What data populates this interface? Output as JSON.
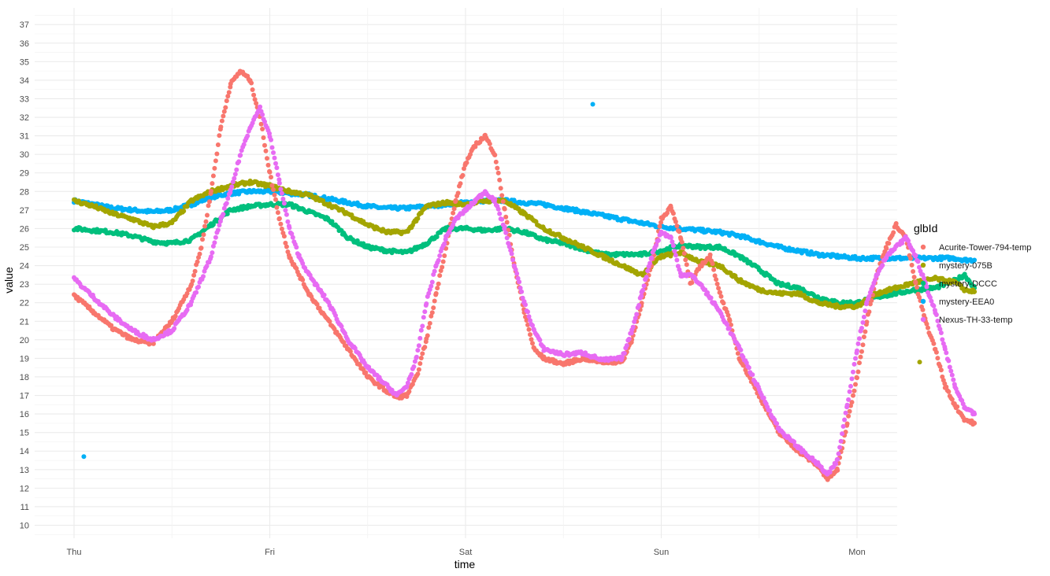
{
  "chart_data": {
    "type": "scatter",
    "title": "",
    "xlabel": "time",
    "ylabel": "value",
    "x_ticks": [
      "Thu",
      "Fri",
      "Sat",
      "Sun",
      "Mon"
    ],
    "x_range_days": [
      -0.2,
      4.2
    ],
    "ylim": [
      9.3,
      37.9
    ],
    "y_ticks": [
      10,
      11,
      12,
      13,
      14,
      15,
      16,
      17,
      18,
      19,
      20,
      21,
      22,
      23,
      24,
      25,
      26,
      27,
      28,
      29,
      30,
      31,
      32,
      33,
      34,
      35,
      36,
      37
    ],
    "grid": true,
    "legend": {
      "title": "glbId",
      "position": "right"
    },
    "series": [
      {
        "name": "Acurite-Tower-794-temp",
        "color": "#F8766D",
        "points": [
          [
            0.0,
            22.4
          ],
          [
            0.1,
            21.5
          ],
          [
            0.2,
            20.6
          ],
          [
            0.3,
            20.0
          ],
          [
            0.4,
            19.8
          ],
          [
            0.5,
            21.0
          ],
          [
            0.6,
            23.0
          ],
          [
            0.65,
            25.0
          ],
          [
            0.7,
            28.0
          ],
          [
            0.75,
            31.5
          ],
          [
            0.8,
            33.8
          ],
          [
            0.85,
            34.5
          ],
          [
            0.9,
            34.0
          ],
          [
            0.95,
            32.0
          ],
          [
            1.0,
            29.0
          ],
          [
            1.05,
            26.5
          ],
          [
            1.1,
            24.5
          ],
          [
            1.15,
            23.5
          ],
          [
            1.2,
            22.5
          ],
          [
            1.3,
            21.0
          ],
          [
            1.4,
            19.5
          ],
          [
            1.5,
            18.0
          ],
          [
            1.6,
            17.2
          ],
          [
            1.65,
            16.9
          ],
          [
            1.7,
            17.0
          ],
          [
            1.75,
            18.0
          ],
          [
            1.8,
            20.0
          ],
          [
            1.85,
            22.5
          ],
          [
            1.9,
            25.0
          ],
          [
            1.95,
            27.5
          ],
          [
            2.0,
            29.5
          ],
          [
            2.05,
            30.5
          ],
          [
            2.1,
            31.0
          ],
          [
            2.15,
            30.0
          ],
          [
            2.2,
            27.0
          ],
          [
            2.25,
            24.0
          ],
          [
            2.3,
            21.5
          ],
          [
            2.35,
            19.5
          ],
          [
            2.4,
            19.0
          ],
          [
            2.5,
            18.7
          ],
          [
            2.6,
            19.0
          ],
          [
            2.7,
            18.8
          ],
          [
            2.8,
            18.8
          ],
          [
            2.85,
            20.0
          ],
          [
            2.9,
            22.0
          ],
          [
            2.95,
            24.0
          ],
          [
            3.0,
            26.5
          ],
          [
            3.05,
            27.2
          ],
          [
            3.1,
            25.5
          ],
          [
            3.15,
            23.0
          ],
          [
            3.2,
            24.0
          ],
          [
            3.25,
            24.5
          ],
          [
            3.3,
            22.5
          ],
          [
            3.35,
            21.0
          ],
          [
            3.4,
            19.0
          ],
          [
            3.5,
            17.0
          ],
          [
            3.6,
            15.0
          ],
          [
            3.7,
            14.0
          ],
          [
            3.8,
            13.2
          ],
          [
            3.85,
            12.5
          ],
          [
            3.9,
            13.0
          ],
          [
            3.95,
            15.5
          ],
          [
            4.0,
            18.0
          ],
          [
            4.05,
            21.0
          ],
          [
            4.1,
            23.5
          ],
          [
            4.15,
            25.0
          ],
          [
            4.2,
            26.2
          ],
          [
            4.25,
            25.5
          ],
          [
            4.3,
            23.0
          ],
          [
            4.35,
            21.0
          ],
          [
            4.4,
            19.5
          ],
          [
            4.45,
            17.5
          ],
          [
            4.5,
            16.5
          ],
          [
            4.55,
            15.7
          ],
          [
            4.6,
            15.5
          ]
        ]
      },
      {
        "name": "mystery-075B",
        "color": "#A3A500",
        "points": [
          [
            0.0,
            27.5
          ],
          [
            0.1,
            27.2
          ],
          [
            0.2,
            26.8
          ],
          [
            0.3,
            26.5
          ],
          [
            0.4,
            26.1
          ],
          [
            0.5,
            26.3
          ],
          [
            0.6,
            27.5
          ],
          [
            0.7,
            28.0
          ],
          [
            0.8,
            28.3
          ],
          [
            0.9,
            28.5
          ],
          [
            1.0,
            28.3
          ],
          [
            1.1,
            28.0
          ],
          [
            1.2,
            27.8
          ],
          [
            1.3,
            27.3
          ],
          [
            1.4,
            26.8
          ],
          [
            1.5,
            26.2
          ],
          [
            1.6,
            25.8
          ],
          [
            1.7,
            25.8
          ],
          [
            1.75,
            26.5
          ],
          [
            1.8,
            27.2
          ],
          [
            1.9,
            27.4
          ],
          [
            2.0,
            27.3
          ],
          [
            2.1,
            27.5
          ],
          [
            2.2,
            27.5
          ],
          [
            2.3,
            26.8
          ],
          [
            2.4,
            26.0
          ],
          [
            2.5,
            25.5
          ],
          [
            2.6,
            25.0
          ],
          [
            2.7,
            24.5
          ],
          [
            2.8,
            24.0
          ],
          [
            2.9,
            23.5
          ],
          [
            3.0,
            24.5
          ],
          [
            3.1,
            24.7
          ],
          [
            3.2,
            24.2
          ],
          [
            3.3,
            24.0
          ],
          [
            3.4,
            23.2
          ],
          [
            3.5,
            22.7
          ],
          [
            3.6,
            22.5
          ],
          [
            3.7,
            22.5
          ],
          [
            3.8,
            22.0
          ],
          [
            3.9,
            21.8
          ],
          [
            4.0,
            21.8
          ],
          [
            4.1,
            22.5
          ],
          [
            4.2,
            22.8
          ],
          [
            4.3,
            23.1
          ],
          [
            4.4,
            23.3
          ],
          [
            4.5,
            23.1
          ],
          [
            4.55,
            22.7
          ],
          [
            4.6,
            22.6
          ]
        ]
      },
      {
        "name": "mystery-DCCC",
        "color": "#00BF7D",
        "points": [
          [
            0.0,
            26.0
          ],
          [
            0.1,
            25.9
          ],
          [
            0.2,
            25.8
          ],
          [
            0.3,
            25.6
          ],
          [
            0.4,
            25.3
          ],
          [
            0.5,
            25.2
          ],
          [
            0.6,
            25.4
          ],
          [
            0.7,
            26.2
          ],
          [
            0.8,
            27.0
          ],
          [
            0.9,
            27.2
          ],
          [
            1.0,
            27.3
          ],
          [
            1.1,
            27.3
          ],
          [
            1.2,
            26.9
          ],
          [
            1.3,
            26.5
          ],
          [
            1.4,
            25.5
          ],
          [
            1.5,
            25.0
          ],
          [
            1.6,
            24.8
          ],
          [
            1.7,
            24.7
          ],
          [
            1.8,
            25.2
          ],
          [
            1.9,
            26.0
          ],
          [
            2.0,
            26.0
          ],
          [
            2.1,
            25.9
          ],
          [
            2.2,
            26.0
          ],
          [
            2.3,
            25.8
          ],
          [
            2.4,
            25.4
          ],
          [
            2.5,
            25.2
          ],
          [
            2.6,
            24.9
          ],
          [
            2.7,
            24.6
          ],
          [
            2.8,
            24.6
          ],
          [
            2.9,
            24.6
          ],
          [
            3.0,
            24.8
          ],
          [
            3.1,
            25.1
          ],
          [
            3.2,
            25.0
          ],
          [
            3.3,
            25.0
          ],
          [
            3.4,
            24.5
          ],
          [
            3.5,
            23.8
          ],
          [
            3.6,
            23.0
          ],
          [
            3.7,
            22.8
          ],
          [
            3.8,
            22.3
          ],
          [
            3.9,
            22.0
          ],
          [
            4.0,
            22.0
          ],
          [
            4.1,
            22.3
          ],
          [
            4.2,
            22.5
          ],
          [
            4.3,
            22.7
          ],
          [
            4.4,
            22.8
          ],
          [
            4.5,
            23.2
          ],
          [
            4.55,
            23.5
          ],
          [
            4.6,
            22.8
          ]
        ]
      },
      {
        "name": "mystery-EEA0",
        "color": "#00B0F6",
        "points": [
          [
            0.0,
            27.5
          ],
          [
            0.1,
            27.3
          ],
          [
            0.2,
            27.1
          ],
          [
            0.3,
            27.0
          ],
          [
            0.4,
            26.9
          ],
          [
            0.5,
            27.0
          ],
          [
            0.6,
            27.3
          ],
          [
            0.7,
            27.7
          ],
          [
            0.8,
            27.9
          ],
          [
            0.9,
            28.0
          ],
          [
            1.0,
            28.0
          ],
          [
            1.1,
            27.9
          ],
          [
            1.2,
            27.8
          ],
          [
            1.3,
            27.6
          ],
          [
            1.4,
            27.4
          ],
          [
            1.5,
            27.2
          ],
          [
            1.6,
            27.1
          ],
          [
            1.7,
            27.1
          ],
          [
            1.8,
            27.2
          ],
          [
            1.9,
            27.3
          ],
          [
            2.0,
            27.4
          ],
          [
            2.1,
            27.5
          ],
          [
            2.2,
            27.5
          ],
          [
            2.3,
            27.4
          ],
          [
            2.4,
            27.3
          ],
          [
            2.5,
            27.1
          ],
          [
            2.6,
            26.9
          ],
          [
            2.7,
            26.7
          ],
          [
            2.8,
            26.5
          ],
          [
            2.9,
            26.3
          ],
          [
            3.0,
            26.1
          ],
          [
            3.1,
            26.0
          ],
          [
            3.2,
            25.9
          ],
          [
            3.3,
            25.8
          ],
          [
            3.4,
            25.6
          ],
          [
            3.5,
            25.3
          ],
          [
            3.6,
            25.0
          ],
          [
            3.7,
            24.8
          ],
          [
            3.8,
            24.6
          ],
          [
            3.9,
            24.5
          ],
          [
            4.0,
            24.4
          ],
          [
            4.1,
            24.4
          ],
          [
            4.2,
            24.4
          ],
          [
            4.3,
            24.4
          ],
          [
            4.4,
            24.4
          ],
          [
            4.5,
            24.4
          ],
          [
            4.55,
            24.3
          ],
          [
            4.6,
            24.3
          ]
        ]
      },
      {
        "name": "Nexus-TH-33-temp",
        "color": "#E76BF3",
        "points": [
          [
            0.0,
            23.3
          ],
          [
            0.1,
            22.3
          ],
          [
            0.2,
            21.3
          ],
          [
            0.3,
            20.5
          ],
          [
            0.4,
            20.0
          ],
          [
            0.5,
            20.5
          ],
          [
            0.6,
            22.0
          ],
          [
            0.7,
            24.5
          ],
          [
            0.75,
            26.5
          ],
          [
            0.8,
            28.0
          ],
          [
            0.85,
            30.0
          ],
          [
            0.9,
            31.5
          ],
          [
            0.95,
            32.5
          ],
          [
            1.0,
            31.0
          ],
          [
            1.05,
            28.5
          ],
          [
            1.1,
            26.0
          ],
          [
            1.15,
            24.5
          ],
          [
            1.2,
            23.5
          ],
          [
            1.3,
            22.0
          ],
          [
            1.4,
            20.0
          ],
          [
            1.5,
            18.5
          ],
          [
            1.6,
            17.5
          ],
          [
            1.65,
            17.0
          ],
          [
            1.7,
            17.5
          ],
          [
            1.75,
            19.0
          ],
          [
            1.8,
            22.0
          ],
          [
            1.85,
            24.0
          ],
          [
            1.9,
            25.5
          ],
          [
            1.95,
            26.5
          ],
          [
            2.0,
            27.0
          ],
          [
            2.05,
            27.5
          ],
          [
            2.1,
            28.0
          ],
          [
            2.15,
            27.5
          ],
          [
            2.2,
            26.0
          ],
          [
            2.25,
            24.0
          ],
          [
            2.3,
            22.0
          ],
          [
            2.35,
            20.5
          ],
          [
            2.4,
            19.5
          ],
          [
            2.5,
            19.2
          ],
          [
            2.6,
            19.3
          ],
          [
            2.7,
            18.9
          ],
          [
            2.8,
            19.0
          ],
          [
            2.85,
            20.5
          ],
          [
            2.9,
            22.5
          ],
          [
            2.95,
            24.5
          ],
          [
            3.0,
            25.8
          ],
          [
            3.05,
            25.5
          ],
          [
            3.1,
            23.5
          ],
          [
            3.15,
            23.5
          ],
          [
            3.2,
            23.0
          ],
          [
            3.3,
            21.5
          ],
          [
            3.4,
            19.5
          ],
          [
            3.5,
            17.3
          ],
          [
            3.6,
            15.2
          ],
          [
            3.7,
            14.2
          ],
          [
            3.8,
            13.3
          ],
          [
            3.85,
            12.7
          ],
          [
            3.9,
            13.5
          ],
          [
            3.95,
            16.5
          ],
          [
            4.0,
            19.5
          ],
          [
            4.05,
            22.0
          ],
          [
            4.1,
            23.5
          ],
          [
            4.15,
            24.5
          ],
          [
            4.2,
            25.0
          ],
          [
            4.25,
            25.5
          ],
          [
            4.3,
            24.5
          ],
          [
            4.35,
            23.0
          ],
          [
            4.4,
            21.5
          ],
          [
            4.45,
            19.5
          ],
          [
            4.5,
            17.5
          ],
          [
            4.55,
            16.3
          ],
          [
            4.6,
            16.0
          ]
        ]
      }
    ],
    "outliers": [
      {
        "series": "mystery-EEA0",
        "x": 0.05,
        "y": 13.7
      },
      {
        "series": "mystery-EEA0",
        "x": 2.65,
        "y": 32.7
      },
      {
        "series": "mystery-075B",
        "x": 4.32,
        "y": 18.8
      }
    ]
  }
}
